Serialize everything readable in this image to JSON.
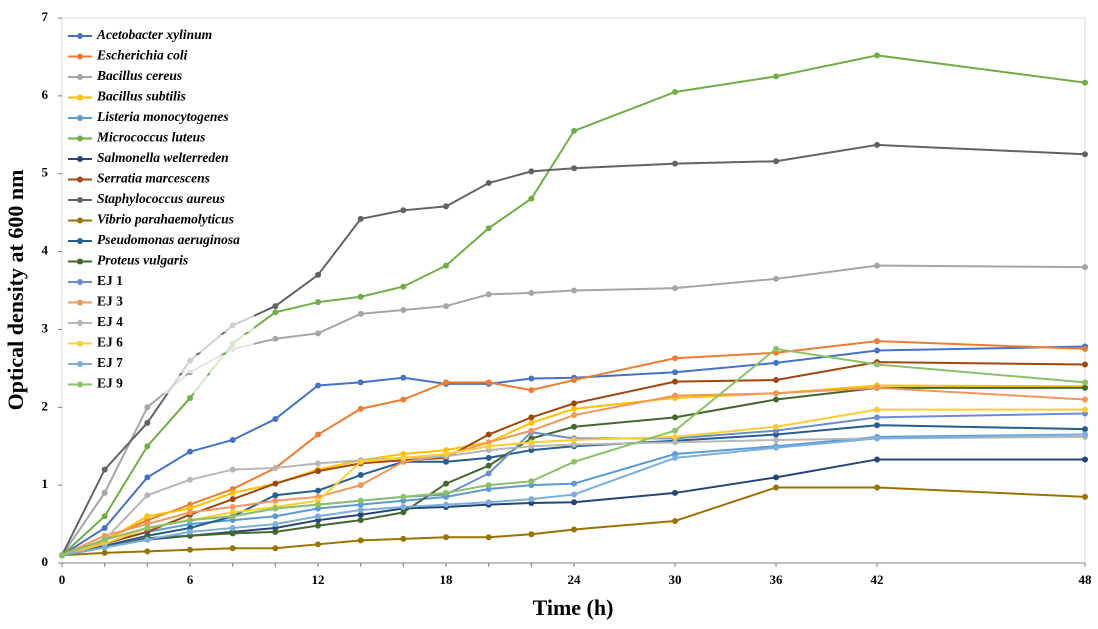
{
  "chart_data": {
    "type": "line",
    "x_label": "Time (h)",
    "y_label": "Optical density at 600 nm",
    "categories": [
      "0",
      null,
      null,
      "6",
      null,
      null,
      "12",
      null,
      null,
      "18",
      null,
      null,
      "24",
      "30",
      "36",
      "42",
      "48"
    ],
    "ylim": [
      0,
      7
    ],
    "yticks": [
      0,
      1,
      2,
      3,
      4,
      5,
      6,
      7
    ],
    "series": [
      {
        "name": "Acetobacter xylinum",
        "color": "#4472c4",
        "values": [
          0.1,
          0.45,
          1.1,
          1.43,
          1.58,
          1.85,
          2.28,
          2.32,
          2.38,
          2.3,
          2.3,
          2.37,
          2.38,
          2.45,
          2.57,
          2.73,
          2.78
        ]
      },
      {
        "name": "Escherichia coli",
        "color": "#ed7d31",
        "values": [
          0.1,
          0.3,
          0.55,
          0.75,
          0.95,
          1.22,
          1.65,
          1.98,
          2.1,
          2.32,
          2.32,
          2.22,
          2.35,
          2.63,
          2.7,
          2.85,
          2.75
        ]
      },
      {
        "name": "Bacillus cereus",
        "color": "#a5a5a5",
        "values": [
          0.1,
          0.9,
          2.0,
          2.45,
          2.75,
          2.88,
          2.95,
          3.2,
          3.25,
          3.3,
          3.45,
          3.47,
          3.5,
          3.53,
          3.65,
          3.82,
          3.8
        ]
      },
      {
        "name": "Bacillus subtilis",
        "color": "#ffc000",
        "values": [
          0.1,
          0.28,
          0.6,
          0.7,
          0.9,
          1.02,
          1.2,
          1.32,
          1.4,
          1.45,
          1.55,
          1.8,
          1.98,
          2.12,
          2.18,
          2.28,
          2.27
        ]
      },
      {
        "name": "Listeria monocytogenes",
        "color": "#5b9bd5",
        "values": [
          0.1,
          0.25,
          0.4,
          0.5,
          0.55,
          0.6,
          0.7,
          0.75,
          0.8,
          0.85,
          0.95,
          1.0,
          1.02,
          1.4,
          1.5,
          1.62,
          1.65
        ]
      },
      {
        "name": "Micrococcus luteus",
        "color": "#70ad47",
        "values": [
          0.1,
          0.6,
          1.5,
          2.12,
          2.82,
          3.22,
          3.35,
          3.42,
          3.55,
          3.82,
          4.3,
          4.68,
          5.55,
          6.05,
          6.25,
          6.52,
          6.17
        ]
      },
      {
        "name": "Salmonella welterreden",
        "color": "#264478",
        "values": [
          0.1,
          0.2,
          0.3,
          0.35,
          0.4,
          0.45,
          0.55,
          0.62,
          0.7,
          0.72,
          0.75,
          0.77,
          0.78,
          0.9,
          1.1,
          1.33,
          1.33
        ]
      },
      {
        "name": "Serratia marcescens",
        "color": "#9e480e",
        "values": [
          0.1,
          0.25,
          0.4,
          0.62,
          0.82,
          1.02,
          1.18,
          1.28,
          1.32,
          1.35,
          1.65,
          1.87,
          2.05,
          2.33,
          2.35,
          2.58,
          2.55
        ]
      },
      {
        "name": "Staphylococcus aureus",
        "color": "#636363",
        "values": [
          0.1,
          1.2,
          1.8,
          2.6,
          3.05,
          3.3,
          3.7,
          4.42,
          4.53,
          4.58,
          4.88,
          5.03,
          5.07,
          5.13,
          5.16,
          5.37,
          5.25
        ]
      },
      {
        "name": "Vibrio parahaemolyticus",
        "color": "#997300",
        "values": [
          0.1,
          0.13,
          0.15,
          0.17,
          0.19,
          0.19,
          0.24,
          0.29,
          0.31,
          0.33,
          0.33,
          0.37,
          0.43,
          0.54,
          0.97,
          0.97,
          0.85
        ]
      },
      {
        "name": "Pseudomonas aeruginosa",
        "color": "#255e91",
        "values": [
          0.1,
          0.22,
          0.35,
          0.45,
          0.6,
          0.87,
          0.93,
          1.13,
          1.3,
          1.3,
          1.35,
          1.45,
          1.5,
          1.57,
          1.65,
          1.77,
          1.72
        ]
      },
      {
        "name": "Proteus vulgaris",
        "color": "#43682b",
        "values": [
          0.1,
          0.2,
          0.32,
          0.35,
          0.38,
          0.4,
          0.48,
          0.55,
          0.65,
          1.02,
          1.25,
          1.6,
          1.75,
          1.87,
          2.1,
          2.25,
          2.25
        ]
      },
      {
        "name": "EJ 1",
        "color": "#698ed0",
        "values": [
          0.1,
          0.3,
          0.45,
          0.55,
          0.6,
          0.7,
          0.75,
          0.8,
          0.85,
          0.88,
          1.15,
          1.68,
          1.6,
          1.6,
          1.7,
          1.87,
          1.92
        ]
      },
      {
        "name": "EJ 3",
        "color": "#f1975a",
        "values": [
          0.1,
          0.35,
          0.5,
          0.65,
          0.72,
          0.8,
          0.85,
          1.0,
          1.3,
          1.38,
          1.55,
          1.7,
          1.9,
          2.15,
          2.18,
          2.25,
          2.1
        ]
      },
      {
        "name": "EJ 4",
        "color": "#b7b7b7",
        "values": [
          0.1,
          0.3,
          0.87,
          1.07,
          1.2,
          1.22,
          1.28,
          1.32,
          1.35,
          1.37,
          1.45,
          1.5,
          1.52,
          1.55,
          1.58,
          1.6,
          1.62
        ]
      },
      {
        "name": "EJ 6",
        "color": "#ffcd33",
        "values": [
          0.1,
          0.25,
          0.45,
          0.55,
          0.65,
          0.72,
          0.8,
          1.3,
          1.35,
          1.4,
          1.5,
          1.55,
          1.58,
          1.62,
          1.75,
          1.97,
          1.97
        ]
      },
      {
        "name": "EJ 7",
        "color": "#7cafdd",
        "values": [
          0.1,
          0.2,
          0.3,
          0.4,
          0.45,
          0.5,
          0.6,
          0.68,
          0.72,
          0.75,
          0.78,
          0.82,
          0.88,
          1.35,
          1.48,
          1.6,
          1.65
        ]
      },
      {
        "name": "EJ 9",
        "color": "#8cc168",
        "values": [
          0.1,
          0.3,
          0.45,
          0.55,
          0.6,
          0.7,
          0.75,
          0.8,
          0.85,
          0.9,
          1.0,
          1.05,
          1.3,
          1.7,
          2.75,
          2.55,
          2.32
        ]
      }
    ]
  }
}
